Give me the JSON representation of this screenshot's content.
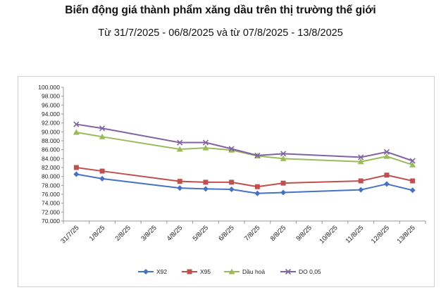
{
  "title": "Biến động giá thành phẩm xăng dầu trên thị trường thế giới",
  "subtitle": "Từ 31/7/2025 - 06/8/2025 và từ 07/8/2025 - 13/8/2025",
  "chart_data": {
    "type": "line",
    "categories": [
      "31/7/25",
      "1/8/25",
      "2/8/25",
      "3/8/25",
      "4/8/25",
      "5/8/25",
      "6/8/25",
      "7/8/25",
      "8/8/25",
      "9/8/25",
      "10/8/25",
      "11/8/25",
      "12/8/25",
      "13/8/25"
    ],
    "ylim": [
      70000,
      100000
    ],
    "ytick_step": 2000,
    "ytick_labels": [
      "70.000",
      "72.000",
      "74.000",
      "76.000",
      "78.000",
      "80.000",
      "82.000",
      "84.000",
      "86.000",
      "88.000",
      "90.000",
      "92.000",
      "94.000",
      "96.000",
      "98.000",
      "100.000"
    ],
    "grid": false,
    "legend_position": "bottom",
    "series": [
      {
        "name": "X92",
        "color": "#4472C4",
        "marker": "diamond",
        "values": [
          80500,
          79500,
          null,
          null,
          77400,
          77200,
          77100,
          76200,
          76400,
          null,
          null,
          77000,
          78300,
          76900
        ]
      },
      {
        "name": "X95",
        "color": "#C0504D",
        "marker": "square",
        "values": [
          82000,
          81200,
          null,
          null,
          78900,
          78700,
          78700,
          77700,
          78500,
          null,
          null,
          79000,
          80300,
          79000
        ]
      },
      {
        "name": "Dầu hoả",
        "color": "#9BBB59",
        "marker": "triangle",
        "values": [
          89900,
          88900,
          null,
          null,
          86100,
          86400,
          85900,
          84600,
          84000,
          null,
          null,
          83300,
          84500,
          82600
        ]
      },
      {
        "name": "DO 0,05",
        "color": "#8064A2",
        "marker": "x",
        "values": [
          91700,
          90800,
          null,
          null,
          87600,
          87600,
          86200,
          84700,
          85100,
          null,
          null,
          84300,
          85500,
          83500
        ]
      }
    ]
  }
}
